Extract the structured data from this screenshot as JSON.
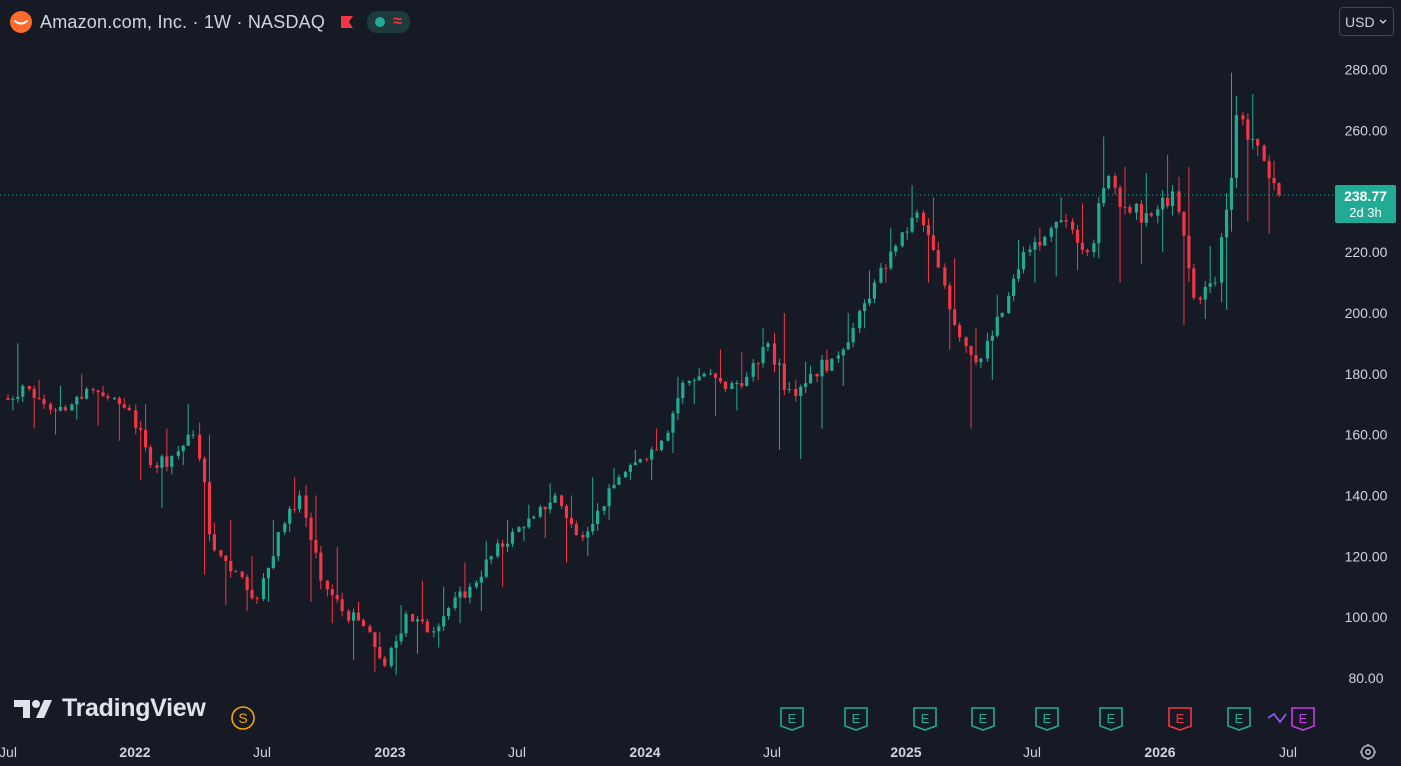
{
  "header": {
    "title": "Amazon.com, Inc. · 1W · NASDAQ",
    "approx_symbol": "≈",
    "logo_icon": "amazon-smile-icon",
    "flag_icon": "flag-icon",
    "status_color": "#22ab94"
  },
  "currency": {
    "label": "USD"
  },
  "price_tag": {
    "price": "238.77",
    "countdown": "2d 3h",
    "color": "#22ab94"
  },
  "brand": {
    "name": "TradingView"
  },
  "colors": {
    "background": "#161a25",
    "up": "#22ab94",
    "down": "#f23645",
    "text": "#d1d4dc"
  },
  "chart_data": {
    "type": "candlestick",
    "ylim": [
      75,
      290
    ],
    "y_ticks": [
      "80.00",
      "100.00",
      "120.00",
      "140.00",
      "160.00",
      "180.00",
      "200.00",
      "220.00",
      "240.00",
      "260.00",
      "280.00"
    ],
    "x_ticks": [
      "Jul",
      "2022",
      "Jul",
      "2023",
      "Jul",
      "2024",
      "Jul",
      "2025",
      "Jul",
      "2026",
      "Jul"
    ],
    "current_price": 238.77,
    "x": [
      "2021-07",
      "2021-08",
      "2021-09",
      "2021-10",
      "2021-11",
      "2021-12",
      "2022-01",
      "2022-02",
      "2022-03",
      "2022-04",
      "2022-05",
      "2022-06",
      "2022-07",
      "2022-08",
      "2022-09",
      "2022-10",
      "2022-11",
      "2022-12",
      "2023-01",
      "2023-02",
      "2023-03",
      "2023-04",
      "2023-05",
      "2023-06",
      "2023-07",
      "2023-08",
      "2023-09",
      "2023-10",
      "2023-11",
      "2023-12",
      "2024-01",
      "2024-02",
      "2024-03",
      "2024-04",
      "2024-05",
      "2024-06",
      "2024-07",
      "2024-08",
      "2024-09",
      "2024-10",
      "2024-11",
      "2024-12",
      "2025-01",
      "2025-02",
      "2025-03",
      "2025-04",
      "2025-05",
      "2025-06",
      "2025-07",
      "2025-08",
      "2025-09",
      "2025-10",
      "2025-11",
      "2025-12",
      "2026-01",
      "2026-02",
      "2026-03",
      "2026-04",
      "2026-05",
      "2026-06"
    ],
    "close": [
      176,
      170,
      168,
      175,
      172,
      168,
      150,
      153,
      160,
      122,
      115,
      106,
      128,
      140,
      112,
      102,
      97,
      84,
      101,
      95,
      103,
      110,
      120,
      128,
      133,
      140,
      127,
      135,
      146,
      152,
      158,
      177,
      180,
      175,
      179,
      190,
      175,
      180,
      185,
      195,
      210,
      222,
      233,
      215,
      192,
      185,
      200,
      220,
      225,
      230,
      220,
      245,
      233,
      232,
      240,
      205,
      210,
      265,
      255,
      238.77
    ],
    "high": [
      190,
      178,
      176,
      180,
      176,
      172,
      170,
      162,
      170,
      160,
      132,
      120,
      132,
      146,
      140,
      123,
      105,
      95,
      104,
      112,
      110,
      118,
      125,
      132,
      137,
      144,
      140,
      146,
      149,
      155,
      162,
      179,
      182,
      188,
      187,
      195,
      200,
      184,
      188,
      200,
      214,
      228,
      242,
      238,
      218,
      195,
      206,
      224,
      228,
      238,
      236,
      258,
      248,
      246,
      252,
      248,
      222,
      279,
      272,
      250
    ],
    "low": [
      168,
      162,
      160,
      165,
      163,
      158,
      145,
      136,
      150,
      114,
      104,
      102,
      105,
      128,
      105,
      98,
      86,
      82,
      81,
      88,
      90,
      98,
      102,
      110,
      125,
      126,
      118,
      120,
      132,
      145,
      145,
      154,
      170,
      166,
      168,
      178,
      155,
      152,
      162,
      176,
      195,
      210,
      224,
      210,
      188,
      162,
      178,
      204,
      210,
      212,
      214,
      218,
      210,
      216,
      220,
      196,
      198,
      201,
      230,
      226
    ]
  }
}
